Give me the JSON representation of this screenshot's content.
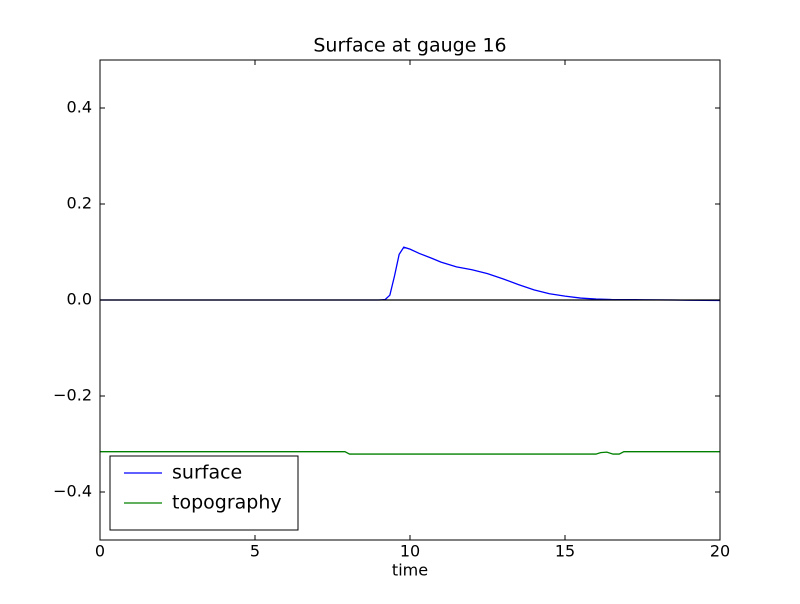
{
  "chart_data": {
    "type": "line",
    "title": "Surface at gauge 16",
    "xlabel": "time",
    "xlim": [
      0,
      20
    ],
    "ylim": [
      -0.5,
      0.5
    ],
    "xticks": [
      0,
      5,
      10,
      15,
      20
    ],
    "yticks": [
      {
        "value": -0.4,
        "label": "−0.4"
      },
      {
        "value": -0.2,
        "label": "−0.2"
      },
      {
        "value": 0.0,
        "label": "0.0"
      },
      0.2,
      0.4
    ],
    "hline": 0,
    "hline_color": "#000000",
    "legend": "lower left",
    "series": [
      {
        "name": "surface",
        "color": "#0000ff",
        "x": [
          0,
          9.0,
          9.2,
          9.35,
          9.5,
          9.65,
          9.8,
          10.0,
          10.3,
          10.7,
          11.0,
          11.5,
          12.0,
          12.5,
          13.0,
          13.5,
          14.0,
          14.5,
          15.0,
          15.5,
          16.0,
          16.5,
          17.5,
          18.5,
          19.0,
          20.0
        ],
        "values": [
          0,
          0,
          0.001,
          0.01,
          0.05,
          0.095,
          0.11,
          0.106,
          0.097,
          0.087,
          0.079,
          0.069,
          0.063,
          0.055,
          0.044,
          0.032,
          0.021,
          0.013,
          0.008,
          0.004,
          0.002,
          0.001,
          0.0005,
          0,
          -0.0005,
          -0.001
        ]
      },
      {
        "name": "topography",
        "color": "#008000",
        "x": [
          0,
          7.9,
          8.05,
          16.0,
          16.15,
          16.35,
          16.55,
          16.75,
          16.9,
          20.0
        ],
        "values": [
          -0.316,
          -0.316,
          -0.321,
          -0.321,
          -0.318,
          -0.317,
          -0.321,
          -0.321,
          -0.316,
          -0.316
        ]
      }
    ]
  }
}
